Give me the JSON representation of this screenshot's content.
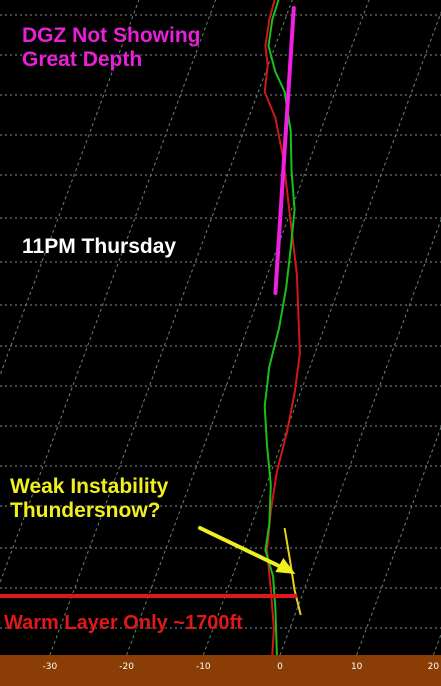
{
  "chart_data": {
    "type": "line",
    "title": "",
    "xlabel": "",
    "ylabel": "",
    "x_ticks": [
      -30,
      -20,
      -10,
      0,
      10,
      20
    ],
    "xlim": [
      -38,
      20.5
    ],
    "ylim_px_note": "",
    "series": [
      {
        "role": "temperature",
        "color": "#d01818",
        "points": [
          [
            -0.7,
            0.0
          ],
          [
            -1.4,
            0.03
          ],
          [
            -1.9,
            0.07
          ],
          [
            -1.6,
            0.1
          ],
          [
            -2.0,
            0.14
          ],
          [
            -0.6,
            0.18
          ],
          [
            0.4,
            0.24
          ],
          [
            1.0,
            0.3
          ],
          [
            1.6,
            0.36
          ],
          [
            2.2,
            0.42
          ],
          [
            2.4,
            0.48
          ],
          [
            2.6,
            0.54
          ],
          [
            1.9,
            0.6
          ],
          [
            0.9,
            0.66
          ],
          [
            -0.4,
            0.72
          ],
          [
            -1.2,
            0.78
          ],
          [
            -1.7,
            0.84
          ],
          [
            -1.2,
            0.9
          ],
          [
            -0.8,
            0.96
          ],
          [
            -1.0,
            1.0
          ]
        ]
      },
      {
        "role": "dewpoint",
        "color": "#18c018",
        "points": [
          [
            -0.2,
            0.0
          ],
          [
            -1.0,
            0.03
          ],
          [
            -1.5,
            0.07
          ],
          [
            -0.6,
            0.11
          ],
          [
            0.6,
            0.14
          ],
          [
            1.4,
            0.2
          ],
          [
            1.5,
            0.26
          ],
          [
            1.9,
            0.32
          ],
          [
            1.4,
            0.38
          ],
          [
            0.8,
            0.44
          ],
          [
            -0.1,
            0.5
          ],
          [
            -1.4,
            0.56
          ],
          [
            -2.0,
            0.62
          ],
          [
            -1.7,
            0.68
          ],
          [
            -1.2,
            0.74
          ],
          [
            -1.4,
            0.8
          ],
          [
            -1.9,
            0.84
          ],
          [
            -0.9,
            0.88
          ],
          [
            -0.6,
            0.93
          ],
          [
            -0.4,
            1.0
          ]
        ]
      }
    ],
    "annotations": [
      {
        "lines": [
          "DGZ Not Showing",
          "Great Depth"
        ],
        "color": "#e820d8"
      },
      {
        "lines": [
          "11PM Thursday"
        ],
        "color": "#ffffff"
      },
      {
        "lines": [
          "Weak Instability",
          "Thundersnow?"
        ],
        "color": "#f0f020"
      },
      {
        "lines": [
          "Warm Layer Only ~1700ft"
        ],
        "color": "#e01818"
      }
    ],
    "overlays": {
      "dgz_segment": {
        "color": "#f020e0",
        "x_from": -0.6,
        "x_to": 1.8
      },
      "instability_segment": {
        "color": "#e8d020"
      },
      "warm_layer_bar": {
        "color": "#e01818"
      },
      "arrow": {
        "color": "#f0f020"
      }
    },
    "colors": {
      "background": "#000000",
      "grid": "#8a8a8a",
      "isotherm": "#5a8a70",
      "axis_bar": "#8a3d05",
      "tick_label": "#ffffff"
    }
  }
}
